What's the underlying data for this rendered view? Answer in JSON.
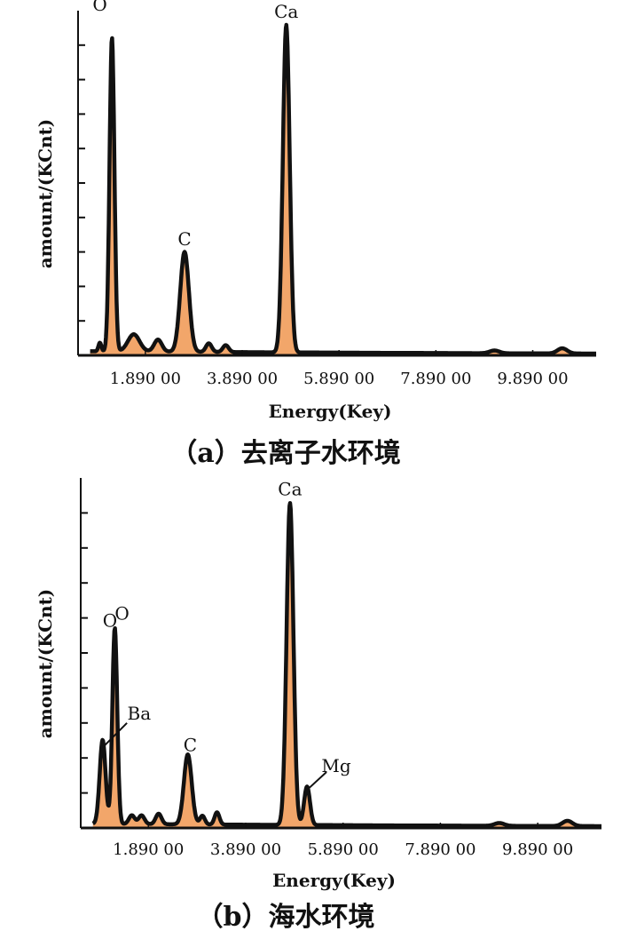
{
  "chart_data": [
    {
      "id": "a",
      "type": "area",
      "caption": "（a）去离子水环境",
      "xlabel": "Energy(Key)",
      "ylabel": "amount/(KCnt)",
      "xlim": [
        0.5,
        11.2
      ],
      "ylim": [
        0,
        10
      ],
      "grid": false,
      "fill_color": "#f2a66a",
      "line_color": "#111111",
      "xticks": [
        {
          "value": 1.89,
          "label": "1.890 00"
        },
        {
          "value": 3.89,
          "label": "3.890 00"
        },
        {
          "value": 5.89,
          "label": "5.890 00"
        },
        {
          "value": 7.89,
          "label": "7.890 00"
        },
        {
          "value": 9.89,
          "label": "9.890 00"
        }
      ],
      "yticks": [
        1,
        2,
        3,
        4,
        5,
        6,
        7,
        8,
        9
      ],
      "baseline": 0.12,
      "peaks": [
        {
          "name": "O",
          "x": 1.2,
          "height": 9.1,
          "width": 0.05
        },
        {
          "name": "C",
          "x": 2.7,
          "height": 2.9,
          "width": 0.09
        },
        {
          "name": "Ca",
          "x": 4.8,
          "height": 9.5,
          "width": 0.07
        }
      ],
      "minor_peaks": [
        {
          "x": 0.95,
          "height": 0.25,
          "width": 0.03
        },
        {
          "x": 1.65,
          "height": 0.5,
          "width": 0.12
        },
        {
          "x": 2.15,
          "height": 0.35,
          "width": 0.08
        },
        {
          "x": 3.2,
          "height": 0.25,
          "width": 0.06
        },
        {
          "x": 3.55,
          "height": 0.2,
          "width": 0.06
        },
        {
          "x": 9.1,
          "height": 0.08,
          "width": 0.1
        },
        {
          "x": 10.5,
          "height": 0.15,
          "width": 0.1
        }
      ],
      "annotations": [
        {
          "text": "O",
          "x": 0.95,
          "y": 10.0,
          "dot": false
        },
        {
          "text": "C",
          "x": 2.7,
          "y": 3.2,
          "dot": true
        },
        {
          "text": "Ca",
          "x": 4.8,
          "y": 9.8,
          "dot": true
        }
      ]
    },
    {
      "id": "b",
      "type": "area",
      "caption": "（b）海水环境",
      "xlabel": "Energy(Key)",
      "ylabel": "amount/(KCnt)",
      "xlim": [
        0.5,
        11.2
      ],
      "ylim": [
        0,
        10
      ],
      "grid": false,
      "fill_color": "#f2a66a",
      "line_color": "#111111",
      "xticks": [
        {
          "value": 1.89,
          "label": "1.890 00"
        },
        {
          "value": 3.89,
          "label": "3.890 00"
        },
        {
          "value": 5.89,
          "label": "5.890 00"
        },
        {
          "value": 7.89,
          "label": "7.890 00"
        },
        {
          "value": 9.89,
          "label": "9.890 00"
        }
      ],
      "yticks": [
        1,
        2,
        3,
        4,
        5,
        6,
        7,
        8,
        9
      ],
      "baseline": 0.12,
      "peaks": [
        {
          "name": "Ba",
          "x": 0.95,
          "height": 2.4,
          "width": 0.06
        },
        {
          "name": "O",
          "x": 1.2,
          "height": 5.6,
          "width": 0.05
        },
        {
          "name": "C",
          "x": 2.7,
          "height": 2.0,
          "width": 0.08
        },
        {
          "name": "Ca",
          "x": 4.8,
          "height": 9.2,
          "width": 0.07
        },
        {
          "name": "Mg",
          "x": 5.15,
          "height": 1.1,
          "width": 0.06
        }
      ],
      "minor_peaks": [
        {
          "x": 1.55,
          "height": 0.25,
          "width": 0.06
        },
        {
          "x": 1.75,
          "height": 0.25,
          "width": 0.06
        },
        {
          "x": 2.1,
          "height": 0.3,
          "width": 0.06
        },
        {
          "x": 3.0,
          "height": 0.25,
          "width": 0.05
        },
        {
          "x": 3.3,
          "height": 0.35,
          "width": 0.05
        },
        {
          "x": 9.1,
          "height": 0.08,
          "width": 0.1
        },
        {
          "x": 10.5,
          "height": 0.15,
          "width": 0.1
        }
      ],
      "annotations": [
        {
          "text": "O",
          "x": 1.1,
          "y": 5.75,
          "dot": false
        },
        {
          "text": "O",
          "x": 1.35,
          "y": 5.95,
          "dot": false
        },
        {
          "text": "C",
          "x": 2.75,
          "y": 2.2,
          "dot": false
        },
        {
          "text": "Ca",
          "x": 4.8,
          "y": 9.5,
          "dot": false
        }
      ],
      "leader_annotations": [
        {
          "text": "Ba",
          "from": [
            0.95,
            2.3
          ],
          "to": [
            1.45,
            3.0
          ],
          "text_at": [
            1.7,
            3.1
          ]
        },
        {
          "text": "Mg",
          "from": [
            5.2,
            1.15
          ],
          "to": [
            5.55,
            1.6
          ],
          "text_at": [
            5.75,
            1.6
          ]
        }
      ]
    }
  ]
}
